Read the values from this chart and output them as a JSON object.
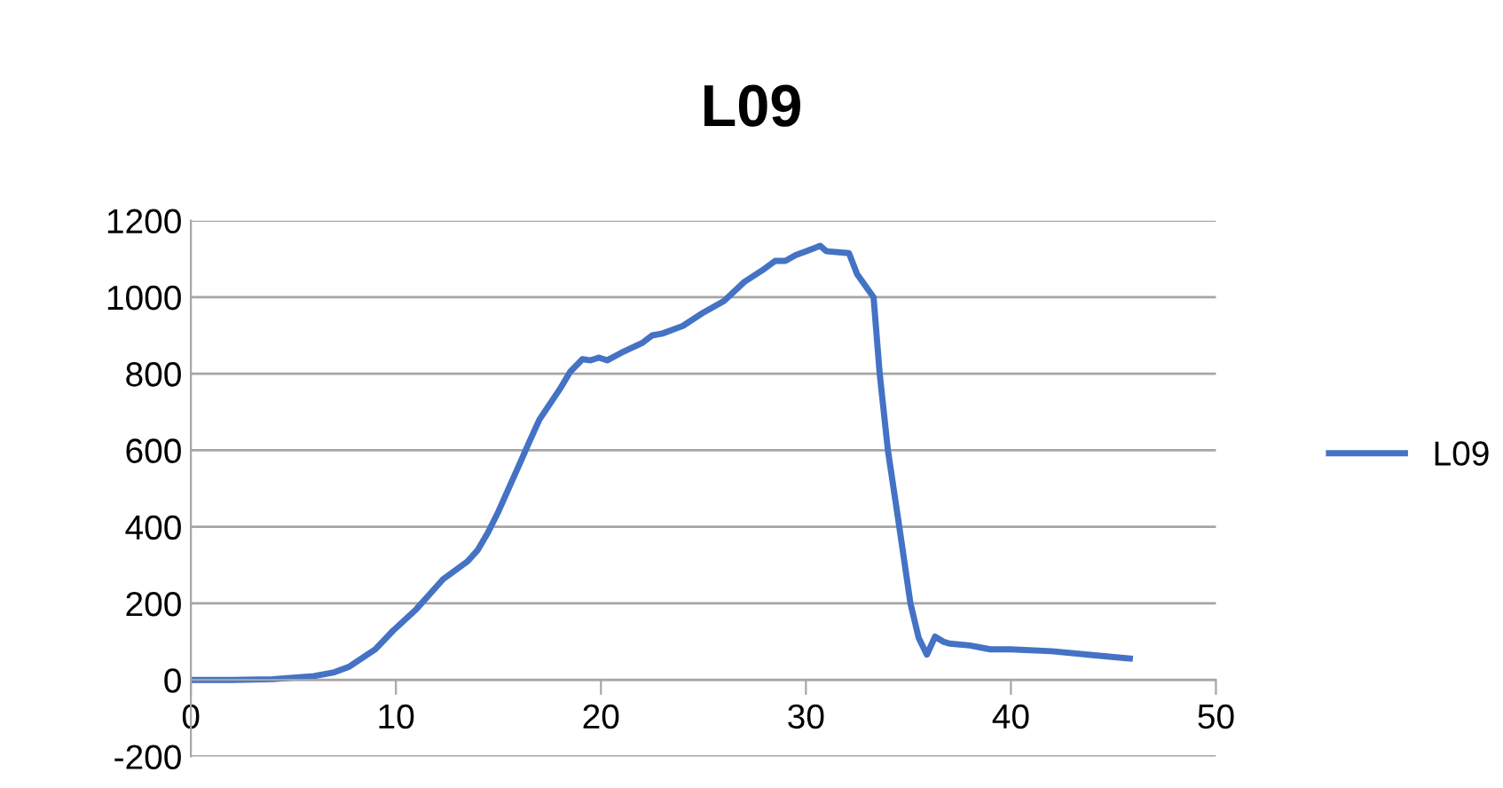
{
  "chart_data": {
    "type": "line",
    "title": "L09",
    "legend": "right",
    "grid": "y",
    "marker": "none",
    "line_style": "solid",
    "xlim": [
      0,
      50
    ],
    "xticks": [
      0,
      10,
      20,
      30,
      40,
      50
    ],
    "ylim": [
      -200,
      1200
    ],
    "yticks": [
      -200,
      0,
      200,
      400,
      600,
      800,
      1000,
      1200
    ],
    "series": [
      {
        "name": "L09",
        "color": "#4472c4",
        "x": [
          0,
          2,
          4,
          6,
          7,
          7.7,
          9,
          9.85,
          11,
          12.3,
          13.5,
          14,
          14.5,
          15,
          16,
          16.5,
          17,
          18,
          18.5,
          19.1,
          19.5,
          19.9,
          20.3,
          21,
          22,
          22.5,
          23,
          24,
          25,
          26,
          27,
          28,
          28.5,
          29,
          29.5,
          30,
          30.7,
          31,
          32.1,
          32.5,
          33.3,
          33.6,
          34,
          34.5,
          35.1,
          35.5,
          35.9,
          36.3,
          36.7,
          37,
          38,
          39,
          40,
          42,
          44,
          45.8
        ],
        "values": [
          0,
          0,
          2,
          10,
          20,
          34,
          80,
          128,
          185,
          263,
          310,
          340,
          386,
          440,
          560,
          621,
          680,
          760,
          805,
          838,
          835,
          842,
          835,
          855,
          880,
          900,
          905,
          925,
          960,
          990,
          1040,
          1075,
          1095,
          1095,
          1110,
          1120,
          1134,
          1120,
          1115,
          1060,
          1000,
          800,
          600,
          420,
          200,
          110,
          66,
          113,
          100,
          95,
          90,
          80,
          80,
          75,
          65,
          56
        ]
      }
    ]
  }
}
